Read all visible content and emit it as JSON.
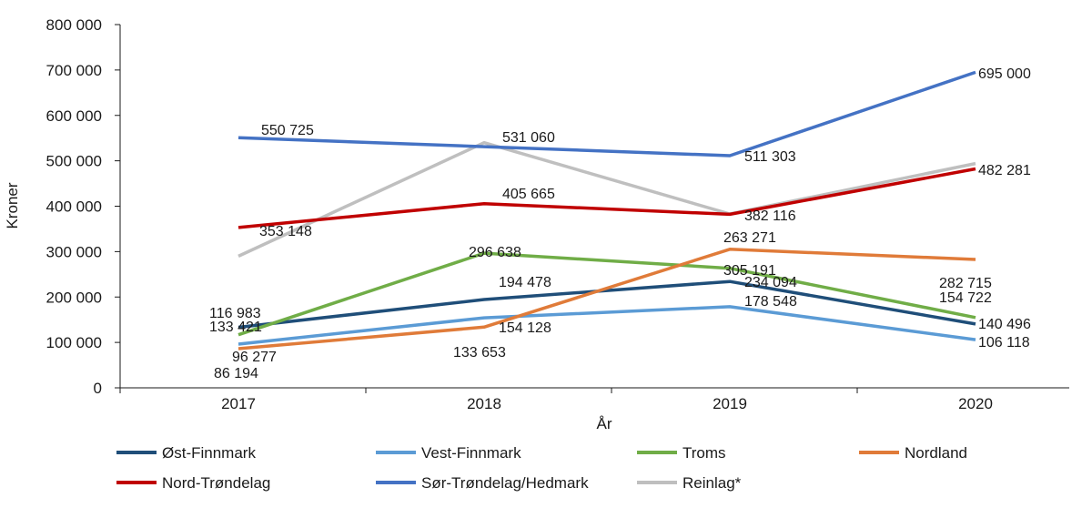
{
  "chart_data": {
    "type": "line",
    "title": "",
    "xlabel": "År",
    "ylabel": "Kroner",
    "ylim": [
      0,
      800000
    ],
    "y_ticks": [
      0,
      100000,
      200000,
      300000,
      400000,
      500000,
      600000,
      700000,
      800000
    ],
    "y_tick_labels": [
      "0",
      "100 000",
      "200 000",
      "300 000",
      "400 000",
      "500 000",
      "600 000",
      "700 000",
      "800 000"
    ],
    "categories": [
      "2017",
      "2018",
      "2019",
      "2020"
    ],
    "grid": false,
    "legend_position": "bottom",
    "series": [
      {
        "name": "Øst-Finnmark",
        "color": "#1f4e79",
        "values": [
          133421,
          194478,
          234094,
          140496
        ],
        "labels": [
          "133 421",
          "194 478",
          "234 094",
          "140 496"
        ]
      },
      {
        "name": "Vest-Finnmark",
        "color": "#5b9bd5",
        "values": [
          96277,
          154128,
          178548,
          106118
        ],
        "labels": [
          "96 277",
          "154 128",
          "178 548",
          "106 118"
        ]
      },
      {
        "name": "Troms",
        "color": "#70ad47",
        "values": [
          116983,
          296638,
          263271,
          154722
        ],
        "labels": [
          "116 983",
          "296 638",
          "263 271",
          "154 722"
        ]
      },
      {
        "name": "Nordland",
        "color": "#e07b39",
        "values": [
          86194,
          133653,
          305191,
          282715
        ],
        "labels": [
          "86 194",
          "133 653",
          "305 191",
          "282 715"
        ]
      },
      {
        "name": "Nord-Trøndelag",
        "color": "#c00000",
        "values": [
          353148,
          405665,
          382116,
          482281
        ],
        "labels": [
          "353 148",
          "405 665",
          "382 116",
          "482 281"
        ]
      },
      {
        "name": "Sør-Trøndelag/Hedmark",
        "color": "#4472c4",
        "values": [
          550725,
          531060,
          511303,
          695000
        ],
        "labels": [
          "550 725",
          "531 060",
          "511 303",
          "695 000"
        ]
      },
      {
        "name": "Reinlag*",
        "color": "#bfbfbf",
        "values": [
          290000,
          540000,
          383000,
          494000
        ],
        "labels": null
      }
    ]
  }
}
